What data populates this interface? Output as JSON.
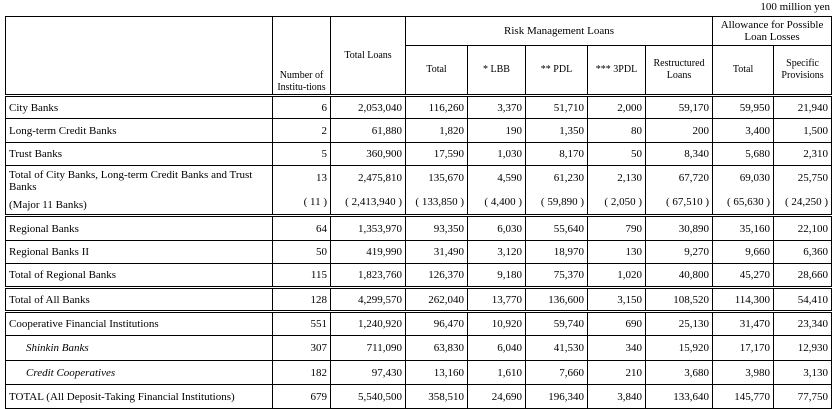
{
  "unit": "100 million yen",
  "header": {
    "number": "Number of Institu-tions",
    "total_loans": "Total Loans",
    "risk_group": "Risk Management Loans",
    "risk_cols": [
      "Total",
      "* LBB",
      "** PDL",
      "*** 3PDL",
      "Restructured Loans"
    ],
    "allowance_group": "Allowance for Possible Loan Losses",
    "allowance_cols": [
      "Total",
      "Specific Provisions"
    ]
  },
  "table": {
    "rows": [
      {
        "label": "City Banks",
        "cells": [
          "6",
          "2,053,040",
          "116,260",
          "3,370",
          "51,710",
          "2,000",
          "59,170",
          "59,950",
          "21,940"
        ]
      },
      {
        "label": "Long-term Credit Banks",
        "cells": [
          "2",
          "61,880",
          "1,820",
          "190",
          "1,350",
          "80",
          "200",
          "3,400",
          "1,500"
        ]
      },
      {
        "label": "Trust Banks",
        "cells": [
          "5",
          "360,900",
          "17,590",
          "1,030",
          "8,170",
          "50",
          "8,340",
          "5,680",
          "2,310"
        ]
      },
      {
        "label": "Total of City Banks, Long-term Credit Banks and Trust Banks",
        "cells": [
          "13",
          "2,475,810",
          "135,670",
          "4,590",
          "61,230",
          "2,130",
          "67,720",
          "69,030",
          "25,750"
        ],
        "note_label": "(Major 11 Banks)",
        "note_cells": [
          "( 11 )",
          "( 2,413,940 )",
          "( 133,850 )",
          "( 4,400 )",
          "( 59,890 )",
          "( 2,050 )",
          "( 67,510 )",
          "( 65,630 )",
          "( 24,250 )"
        ]
      },
      {
        "label": "Regional Banks",
        "cells": [
          "64",
          "1,353,970",
          "93,350",
          "6,030",
          "55,640",
          "790",
          "30,890",
          "35,160",
          "22,100"
        ]
      },
      {
        "label": "Regional Banks II",
        "cells": [
          "50",
          "419,990",
          "31,490",
          "3,120",
          "18,970",
          "130",
          "9,270",
          "9,660",
          "6,360"
        ]
      },
      {
        "label": "Total of Regional Banks",
        "cells": [
          "115",
          "1,823,760",
          "126,370",
          "9,180",
          "75,370",
          "1,020",
          "40,800",
          "45,270",
          "28,660"
        ]
      },
      {
        "label": "Total of All Banks",
        "cells": [
          "128",
          "4,299,570",
          "262,040",
          "13,770",
          "136,600",
          "3,150",
          "108,520",
          "114,300",
          "54,410"
        ]
      },
      {
        "label": "Cooperative Financial Institutions",
        "cells": [
          "551",
          "1,240,920",
          "96,470",
          "10,920",
          "59,740",
          "690",
          "25,130",
          "31,470",
          "23,340"
        ]
      },
      {
        "label": "Shinkin Banks",
        "cells": [
          "307",
          "711,090",
          "63,830",
          "6,040",
          "41,530",
          "340",
          "15,920",
          "17,170",
          "12,930"
        ],
        "italic": true
      },
      {
        "label": "Credit Cooperatives",
        "cells": [
          "182",
          "97,430",
          "13,160",
          "1,610",
          "7,660",
          "210",
          "3,680",
          "3,980",
          "3,130"
        ],
        "italic": true
      },
      {
        "label": "TOTAL (All Deposit-Taking Financial Institutions)",
        "cells": [
          "679",
          "5,540,500",
          "358,510",
          "24,690",
          "196,340",
          "3,840",
          "133,640",
          "145,770",
          "77,750"
        ]
      }
    ]
  }
}
